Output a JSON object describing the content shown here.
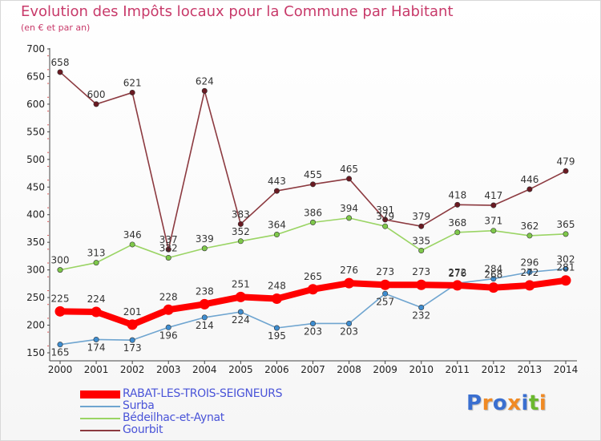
{
  "header": {
    "title": "Evolution des Impôts locaux pour la Commune par Habitant",
    "subtitle": "(en € et par an)"
  },
  "logo": {
    "text": "Proxiti"
  },
  "chart_data": {
    "type": "line",
    "title": "Evolution des Impôts locaux pour la Commune par Habitant",
    "subtitle": "(en € et par an)",
    "xlabel": "",
    "ylabel": "",
    "categories": [
      "2000",
      "2001",
      "2002",
      "2003",
      "2004",
      "2005",
      "2006",
      "2007",
      "2008",
      "2009",
      "2010",
      "2011",
      "2012",
      "2013",
      "2014"
    ],
    "ylim": [
      150,
      700
    ],
    "yticks": [
      150,
      200,
      250,
      300,
      350,
      400,
      450,
      500,
      550,
      600,
      650,
      700
    ],
    "grid": false,
    "legend_position": "bottom-left",
    "series": [
      {
        "name": "RABAT-LES-TROIS-SEIGNEURS",
        "color": "#ff0000",
        "values": [
          225,
          224,
          201,
          228,
          238,
          251,
          248,
          265,
          276,
          273,
          273,
          272,
          268,
          272,
          281
        ]
      },
      {
        "name": "Surba",
        "color": "#6fa5d0",
        "marker_color": "#3e8dd0",
        "values": [
          165,
          174,
          173,
          196,
          214,
          224,
          195,
          203,
          203,
          257,
          232,
          276,
          284,
          296,
          302
        ]
      },
      {
        "name": "Bédeilhac-et-Aynat",
        "color": "#9ad464",
        "marker_color": "#7ec84a",
        "values": [
          300,
          313,
          346,
          322,
          339,
          352,
          364,
          386,
          394,
          379,
          335,
          368,
          371,
          362,
          365
        ]
      },
      {
        "name": "Gourbit",
        "color": "#8c3a40",
        "marker_color": "#6a1a22",
        "values": [
          658,
          600,
          621,
          337,
          624,
          383,
          443,
          455,
          465,
          391,
          379,
          418,
          417,
          446,
          479
        ]
      }
    ]
  }
}
